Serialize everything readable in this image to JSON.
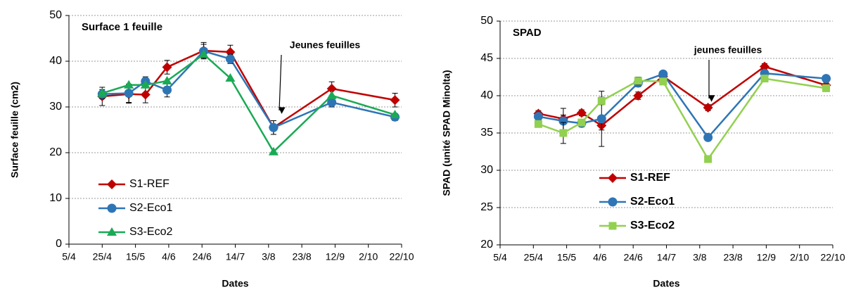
{
  "chart_data": [
    {
      "type": "line",
      "title": "Surface 1 feuille",
      "x_label": "Dates",
      "y_label": "Surface feuille (cm2)",
      "annotation": "Jeunes feuilles",
      "xlim": [
        "5/4",
        "22/10"
      ],
      "xticks": [
        "5/4",
        "25/4",
        "15/5",
        "4/6",
        "24/6",
        "14/7",
        "3/8",
        "23/8",
        "12/9",
        "2/10",
        "22/10"
      ],
      "ylim": [
        0,
        50
      ],
      "yticks": [
        0,
        10,
        20,
        30,
        40,
        50
      ],
      "grid": true,
      "legend": "lower left",
      "x": [
        "25/4",
        "11/5",
        "21/5",
        "3/6",
        "25/6",
        "11/7",
        "6/8",
        "10/9",
        "18/10"
      ],
      "series": [
        {
          "name": "S1-REF",
          "color": "#c00000",
          "marker": "diamond",
          "values": [
            32.3,
            32.8,
            32.7,
            38.7,
            42.3,
            42.0,
            25.5,
            34.0,
            31.5
          ],
          "errors": [
            2.0,
            2.0,
            1.8,
            1.5,
            1.8,
            1.5,
            1.5,
            1.5,
            1.5
          ]
        },
        {
          "name": "S2-Eco1",
          "color": "#2e75b6",
          "marker": "circle",
          "values": [
            32.8,
            33.0,
            35.6,
            33.7,
            42.2,
            40.5,
            25.5,
            31.0,
            27.8
          ],
          "errors": [
            1.0,
            2.0,
            1.0,
            1.5,
            1.5,
            1.0,
            1.5,
            1.0,
            0.8
          ]
        },
        {
          "name": "S3-Eco2",
          "color": "#1aaa55",
          "marker": "triangle",
          "values": [
            33.0,
            34.8,
            34.8,
            35.7,
            41.5,
            36.3,
            20.2,
            32.5,
            28.3
          ]
        }
      ]
    },
    {
      "type": "line",
      "title": "SPAD",
      "x_label": "Dates",
      "y_label": "SPAD (unité SPAD Minolta)",
      "annotation": "jeunes feuilles",
      "xlim": [
        "5/4",
        "22/10"
      ],
      "xticks": [
        "5/4",
        "25/4",
        "15/5",
        "4/6",
        "24/6",
        "14/7",
        "3/8",
        "23/8",
        "12/9",
        "2/10",
        "22/10"
      ],
      "ylim": [
        20,
        50
      ],
      "yticks": [
        20,
        25,
        30,
        35,
        40,
        45,
        50
      ],
      "grid": true,
      "legend": "lower left",
      "x": [
        "28/4",
        "13/5",
        "24/5",
        "5/6",
        "27/6",
        "12/7",
        "8/8",
        "11/9",
        "18/10"
      ],
      "series": [
        {
          "name": "S1-REF",
          "color": "#c00000",
          "marker": "diamond",
          "values": [
            37.6,
            36.9,
            37.7,
            36.0,
            40.0,
            42.6,
            38.4,
            43.9,
            41.4
          ],
          "errors": [
            0.4,
            0.5,
            0.4,
            0.6,
            0.5,
            0.4,
            0.4,
            0.4,
            0.4
          ]
        },
        {
          "name": "S2-Eco1",
          "color": "#2e75b6",
          "marker": "circle",
          "values": [
            37.2,
            36.6,
            36.3,
            36.9,
            41.7,
            42.9,
            34.4,
            43.0,
            42.3
          ],
          "errors": [
            0.5,
            1.7,
            0.5,
            3.7,
            0.5,
            0.4,
            0.4,
            0.4,
            0.4
          ]
        },
        {
          "name": "S3-Eco2",
          "color": "#92d050",
          "marker": "square",
          "values": [
            36.2,
            35.0,
            36.4,
            39.3,
            42.0,
            41.9,
            31.5,
            42.3,
            41.0
          ],
          "errors": [
            0.4,
            1.4,
            0.4,
            0.5,
            0.5,
            0.4,
            0.4,
            0.4,
            0.4
          ]
        }
      ]
    }
  ]
}
